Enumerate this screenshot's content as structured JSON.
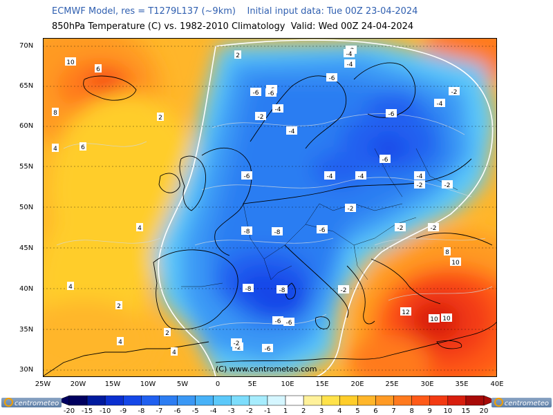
{
  "header": {
    "line1": "ECMWF Model, res = T1279L137 (~9km)    Initial input data: Tue 00Z 23-04-2024",
    "line2": "850hPa Temperature (C) vs. 1982-2010 Climatology  Valid: Wed 00Z 24-04-2024"
  },
  "axes": {
    "lat_labels": [
      "70N",
      "65N",
      "60N",
      "55N",
      "50N",
      "45N",
      "40N",
      "35N",
      "30N"
    ],
    "lon_labels": [
      "25W",
      "20W",
      "15W",
      "10W",
      "5W",
      "0",
      "5E",
      "10E",
      "15E",
      "20E",
      "25E",
      "30E",
      "35E",
      "40E"
    ]
  },
  "copyright": "(C) www.centrometeo.com",
  "logo_text": "centrometeo",
  "colorbar": {
    "labels": [
      "-20",
      "-15",
      "-10",
      "-9",
      "-8",
      "-7",
      "-6",
      "-5",
      "-4",
      "-3",
      "-2",
      "-1",
      "1",
      "2",
      "3",
      "4",
      "5",
      "6",
      "7",
      "8",
      "9",
      "10",
      "15",
      "20"
    ],
    "colors": [
      "#000060",
      "#001a9e",
      "#0a2fd0",
      "#1447e8",
      "#2060f0",
      "#2c7df2",
      "#3a98f5",
      "#47b2f8",
      "#5cc9fa",
      "#7dddfc",
      "#a6ecfd",
      "#d5f6ff",
      "#ffffff",
      "#fff19a",
      "#ffe24a",
      "#ffcd2a",
      "#ffb62a",
      "#ff9a24",
      "#ff7a1e",
      "#ff5a18",
      "#f33a12",
      "#d81e0e",
      "#a80a08"
    ]
  },
  "contour_labels": [
    "10",
    "6",
    "8",
    "4",
    "6",
    "2",
    "4",
    "4",
    "2",
    "4",
    "2",
    "4",
    "2",
    "-2",
    "-4",
    "-6",
    "-4",
    "-6",
    "-4",
    "-6",
    "-6",
    "-4",
    "-4",
    "-2",
    "-2",
    "-6",
    "-8",
    "-6",
    "-4",
    "-2",
    "-8",
    "-8",
    "-6",
    "-8",
    "-6",
    "-6",
    "-2",
    "-6",
    "-4",
    "-2",
    "-2",
    "-2",
    "2",
    "-8",
    "-6",
    "-2",
    "8",
    "10",
    "12",
    "10",
    "10",
    "-2",
    "-6",
    "-4",
    "-2"
  ]
}
